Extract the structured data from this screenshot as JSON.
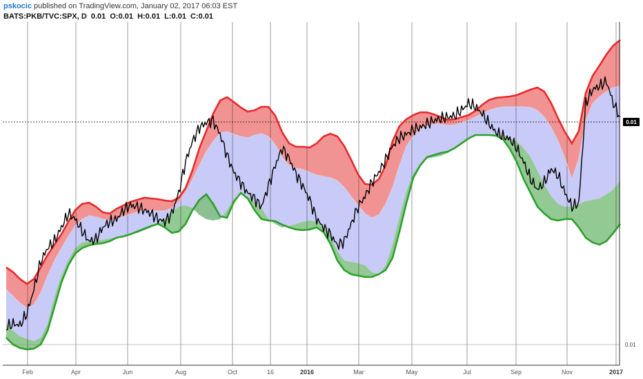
{
  "header": {
    "author": "pskocic",
    "published_text": "published on TradingView.com, January 02, 2017 06:03 EST"
  },
  "symbol_line": {
    "symbol": "BATS:PKB/TVC:SPX, D",
    "value": "0.01",
    "open": "O:0.01",
    "high": "H:0.01",
    "low": "L:0.01",
    "close": "C:0.01"
  },
  "colors": {
    "upper_fill": "#f08080",
    "upper_line": "#e8282a",
    "mid_fill": "#c2c4f7",
    "mid_line": "#d9d0e0",
    "lower_fill": "#80c080",
    "lower_line": "#2aa02a",
    "price_line": "#000000",
    "grid": "#222222",
    "tag": "#000000"
  },
  "chart_data": {
    "type": "line",
    "title": "",
    "x_ticks": [
      "Feb",
      "Apr",
      "Jun",
      "Aug",
      "Oct",
      "16",
      "2016",
      "Mar",
      "May",
      "Jul",
      "Sep",
      "Nov",
      "2017"
    ],
    "bold_ticks": [
      "2016",
      "2017"
    ],
    "y_tick_labels": [
      "0.01",
      "0.01"
    ],
    "last_value_label": "0.01",
    "x": [
      0,
      10,
      20,
      30,
      40,
      50,
      60,
      70,
      80,
      90,
      100,
      110,
      120,
      130,
      140,
      150,
      160,
      170,
      180,
      190,
      200,
      210,
      220,
      230,
      240,
      250,
      260,
      270,
      280,
      290,
      300,
      310,
      320,
      330,
      340,
      350,
      360,
      370,
      380,
      390,
      400,
      410,
      420,
      430,
      440,
      450,
      460,
      470,
      480,
      490,
      500,
      510,
      520,
      530,
      540,
      550,
      560,
      570,
      580,
      590,
      600,
      610,
      620,
      630,
      640,
      650,
      660,
      670,
      680,
      690,
      700,
      710,
      720,
      730,
      740,
      750,
      760,
      770,
      780,
      790,
      800,
      810,
      820,
      830,
      840,
      850,
      860,
      870,
      880,
      890
    ],
    "series": [
      {
        "role": "upper",
        "values": [
          388,
          395,
          405,
          412,
          405,
          388,
          370,
          355,
          340,
          322,
          305,
          296,
          294,
          300,
          308,
          310,
          303,
          298,
          293,
          290,
          287,
          288,
          289,
          291,
          292,
          287,
          273,
          247,
          215,
          190,
          165,
          146,
          141,
          148,
          156,
          162,
          160,
          155,
          155,
          168,
          192,
          208,
          213,
          213,
          214,
          208,
          198,
          194,
          198,
          212,
          232,
          253,
          267,
          268,
          260,
          240,
          205,
          183,
          173,
          167,
          163,
          163,
          166,
          170,
          174,
          173,
          170,
          167,
          161,
          152,
          145,
          142,
          141,
          140,
          138,
          134,
          130,
          127,
          133,
          150,
          172,
          192,
          208,
          190,
          135,
          110,
          95,
          79,
          66,
          58
        ]
      },
      {
        "role": "mid",
        "values": [
          420,
          430,
          440,
          447,
          442,
          425,
          400,
          378,
          360,
          343,
          328,
          318,
          313,
          315,
          318,
          320,
          318,
          314,
          311,
          308,
          305,
          305,
          306,
          306,
          302,
          293,
          278,
          260,
          240,
          220,
          205,
          193,
          191,
          195,
          198,
          200,
          196,
          194,
          198,
          210,
          228,
          240,
          244,
          246,
          250,
          254,
          256,
          258,
          262,
          272,
          285,
          298,
          310,
          316,
          312,
          296,
          272,
          240,
          212,
          198,
          187,
          182,
          180,
          180,
          182,
          181,
          178,
          175,
          170,
          165,
          160,
          157,
          155,
          155,
          155,
          155,
          156,
          160,
          170,
          185,
          205,
          230,
          260,
          230,
          175,
          150,
          140,
          133,
          127,
          125
        ]
      },
      {
        "role": "lower",
        "values": [
          470,
          480,
          488,
          492,
          495,
          490,
          470,
          430,
          400,
          378,
          360,
          352,
          350,
          350,
          348,
          346,
          344,
          342,
          340,
          338,
          334,
          330,
          325,
          318,
          308,
          300,
          298,
          302,
          312,
          318,
          320,
          318,
          305,
          288,
          282,
          285,
          293,
          302,
          318,
          325,
          330,
          328,
          325,
          322,
          320,
          322,
          328,
          342,
          365,
          378,
          380,
          382,
          385,
          395,
          398,
          385,
          355,
          315,
          278,
          252,
          238,
          230,
          228,
          226,
          222,
          215,
          208,
          201,
          196,
          195,
          195,
          195,
          196,
          200,
          205,
          215,
          228,
          248,
          268,
          285,
          296,
          300,
          300,
          296,
          292,
          290,
          288,
          282,
          275,
          262
        ]
      },
      {
        "role": "lower_band",
        "values": [
          490,
          500,
          505,
          507,
          506,
          500,
          480,
          445,
          410,
          385,
          368,
          360,
          356,
          354,
          353,
          350,
          345,
          343,
          340,
          336,
          332,
          328,
          325,
          330,
          338,
          336,
          325,
          305,
          290,
          282,
          296,
          314,
          316,
          293,
          280,
          288,
          305,
          318,
          320,
          321,
          326,
          330,
          333,
          334,
          333,
          330,
          337,
          354,
          378,
          392,
          398,
          400,
          402,
          402,
          398,
          392,
          374,
          336,
          295,
          258,
          240,
          228,
          225,
          222,
          220,
          215,
          208,
          201,
          196,
          196,
          196,
          197,
          202,
          216,
          235,
          260,
          280,
          300,
          310,
          318,
          320,
          318,
          318,
          330,
          345,
          352,
          355,
          350,
          338,
          325
        ]
      },
      {
        "role": "price",
        "values": [
          475,
          470,
          472,
          455,
          420,
          380,
          360,
          350,
          330,
          310,
          318,
          335,
          350,
          348,
          330,
          322,
          318,
          305,
          298,
          300,
          305,
          310,
          318,
          322,
          310,
          280,
          235,
          205,
          185,
          178,
          175,
          195,
          225,
          250,
          265,
          280,
          288,
          300,
          270,
          240,
          215,
          230,
          252,
          270,
          290,
          318,
          330,
          340,
          356,
          350,
          325,
          300,
          285,
          265,
          250,
          232,
          212,
          200,
          195,
          188,
          185,
          180,
          175,
          172,
          170,
          168,
          160,
          150,
          155,
          165,
          180,
          192,
          198,
          202,
          215,
          235,
          260,
          275,
          265,
          245,
          255,
          280,
          300,
          295,
          150,
          130,
          125,
          118,
          150,
          170
        ]
      }
    ]
  }
}
